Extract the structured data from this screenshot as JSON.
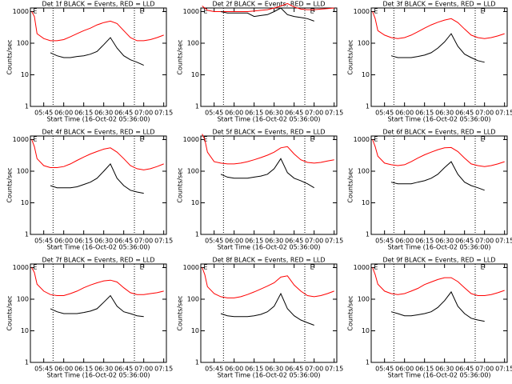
{
  "chart_data": [
    {
      "type": "line",
      "title": "Det 1f BLACK = Events, RED = LLD",
      "xlabel": "Start Time (16-Oct-02 05:36:00)",
      "ylabel": "Counts/sec",
      "log_y": true,
      "x": [
        "05:36",
        "05:38",
        "05:40",
        "05:45",
        "05:50",
        "05:55",
        "06:00",
        "06:05",
        "06:10",
        "06:15",
        "06:20",
        "06:25",
        "06:30",
        "06:35",
        "06:40",
        "06:45",
        "06:50",
        "06:55",
        "07:00",
        "07:05",
        "07:10",
        "07:15"
      ],
      "xlim": [
        "05:35",
        "07:17"
      ],
      "xticks": [
        "05:45",
        "06:00",
        "06:15",
        "06:30",
        "06:45",
        "07:00",
        "07:15"
      ],
      "ylim": [
        1,
        1300
      ],
      "yticks": [
        1,
        10,
        100,
        1000
      ],
      "vlines": [
        "05:52",
        "06:53"
      ],
      "annotations": [
        {
          "x": "05:37",
          "text": "E"
        },
        {
          "x": "06:57",
          "text": "E"
        }
      ],
      "series": [
        {
          "color": "#ff0000",
          "values": [
            1000,
            700,
            200,
            140,
            120,
            120,
            130,
            160,
            200,
            250,
            300,
            380,
            450,
            500,
            420,
            250,
            150,
            120,
            120,
            130,
            150,
            180
          ]
        },
        {
          "color": "#000000",
          "values": [
            null,
            null,
            null,
            null,
            50,
            40,
            35,
            35,
            38,
            40,
            45,
            55,
            90,
            150,
            70,
            40,
            30,
            25,
            20,
            null,
            null,
            null
          ]
        }
      ]
    },
    {
      "type": "line",
      "title": "Det 2f BLACK = Events, RED = LLD",
      "xlabel": "Start Time (16-Oct-02 05:36:00)",
      "ylabel": "Counts/sec",
      "log_y": true,
      "x": [
        "05:36",
        "05:38",
        "05:40",
        "05:45",
        "05:50",
        "05:55",
        "06:00",
        "06:05",
        "06:10",
        "06:15",
        "06:20",
        "06:25",
        "06:30",
        "06:35",
        "06:40",
        "06:45",
        "06:50",
        "06:55",
        "07:00",
        "07:05",
        "07:10",
        "07:15"
      ],
      "xlim": [
        "05:35",
        "07:17"
      ],
      "xticks": [
        "05:45",
        "06:00",
        "06:15",
        "06:30",
        "06:45",
        "07:00",
        "07:15"
      ],
      "ylim": [
        1,
        1300
      ],
      "yticks": [
        1,
        10,
        100,
        1000
      ],
      "vlines": [
        "05:52",
        "06:53"
      ],
      "annotations": [
        {
          "x": "05:37",
          "text": "E"
        },
        {
          "x": "06:57",
          "text": "E"
        }
      ],
      "series": [
        {
          "color": "#ff0000",
          "values": [
            1500,
            1300,
            1100,
            1000,
            1000,
            1000,
            1000,
            1000,
            1000,
            1050,
            1100,
            1150,
            1300,
            1500,
            1800,
            1400,
            1200,
            1150,
            1150,
            1200,
            1250,
            1300
          ]
        },
        {
          "color": "#000000",
          "values": [
            null,
            null,
            null,
            null,
            1000,
            900,
            900,
            900,
            900,
            700,
            750,
            800,
            1000,
            1300,
            800,
            700,
            650,
            600,
            500,
            null,
            null,
            null
          ]
        }
      ]
    },
    {
      "type": "line",
      "title": "Det 3f BLACK = Events, RED = LLD",
      "xlabel": "Start Time (16-Oct-02 05:36:00)",
      "ylabel": "Counts/sec",
      "log_y": true,
      "x": [
        "05:36",
        "05:38",
        "05:40",
        "05:45",
        "05:50",
        "05:55",
        "06:00",
        "06:05",
        "06:10",
        "06:15",
        "06:20",
        "06:25",
        "06:30",
        "06:35",
        "06:40",
        "06:45",
        "06:50",
        "06:55",
        "07:00",
        "07:05",
        "07:10",
        "07:15"
      ],
      "xlim": [
        "05:35",
        "07:17"
      ],
      "xticks": [
        "05:45",
        "06:00",
        "06:15",
        "06:30",
        "06:45",
        "07:00",
        "07:15"
      ],
      "ylim": [
        1,
        1300
      ],
      "yticks": [
        1,
        10,
        100,
        1000
      ],
      "vlines": [
        "05:52",
        "06:53"
      ],
      "annotations": [
        {
          "x": "05:37",
          "text": "E"
        },
        {
          "x": "06:57",
          "text": "E"
        }
      ],
      "series": [
        {
          "color": "#ff0000",
          "values": [
            1000,
            600,
            250,
            180,
            150,
            140,
            150,
            180,
            230,
            300,
            380,
            460,
            540,
            600,
            450,
            280,
            180,
            150,
            140,
            150,
            170,
            200
          ]
        },
        {
          "color": "#000000",
          "values": [
            null,
            null,
            null,
            null,
            40,
            35,
            35,
            35,
            38,
            42,
            50,
            70,
            110,
            200,
            80,
            45,
            35,
            28,
            25,
            null,
            null,
            null
          ]
        }
      ]
    },
    {
      "type": "line",
      "title": "Det 4f BLACK = Events, RED = LLD",
      "xlabel": "Start Time (16-Oct-02 05:36:00)",
      "ylabel": "Counts/sec",
      "log_y": true,
      "x": [
        "05:36",
        "05:38",
        "05:40",
        "05:45",
        "05:50",
        "05:55",
        "06:00",
        "06:05",
        "06:10",
        "06:15",
        "06:20",
        "06:25",
        "06:30",
        "06:35",
        "06:40",
        "06:45",
        "06:50",
        "06:55",
        "07:00",
        "07:05",
        "07:10",
        "07:15"
      ],
      "xlim": [
        "05:35",
        "07:17"
      ],
      "xticks": [
        "05:45",
        "06:00",
        "06:15",
        "06:30",
        "06:45",
        "07:00",
        "07:15"
      ],
      "ylim": [
        1,
        1300
      ],
      "yticks": [
        1,
        10,
        100,
        1000
      ],
      "vlines": [
        "05:52",
        "06:53"
      ],
      "annotations": [
        {
          "x": "05:37",
          "text": "E"
        },
        {
          "x": "06:57",
          "text": "E"
        }
      ],
      "series": [
        {
          "color": "#ff0000",
          "values": [
            1000,
            600,
            250,
            150,
            130,
            130,
            140,
            170,
            220,
            280,
            350,
            420,
            500,
            550,
            400,
            250,
            150,
            120,
            110,
            120,
            140,
            170
          ]
        },
        {
          "color": "#000000",
          "values": [
            null,
            null,
            null,
            null,
            35,
            30,
            30,
            30,
            32,
            38,
            45,
            60,
            100,
            170,
            60,
            35,
            25,
            22,
            20,
            null,
            null,
            null
          ]
        }
      ]
    },
    {
      "type": "line",
      "title": "Det 5f BLACK = Events, RED = LLD",
      "xlabel": "Start Time (16-Oct-02 05:36:00)",
      "ylabel": "Counts/sec",
      "log_y": true,
      "x": [
        "05:36",
        "05:38",
        "05:40",
        "05:45",
        "05:50",
        "05:55",
        "06:00",
        "06:05",
        "06:10",
        "06:15",
        "06:20",
        "06:25",
        "06:30",
        "06:35",
        "06:40",
        "06:45",
        "06:50",
        "06:55",
        "07:00",
        "07:05",
        "07:10",
        "07:15"
      ],
      "xlim": [
        "05:35",
        "07:17"
      ],
      "xticks": [
        "05:45",
        "06:00",
        "06:15",
        "06:30",
        "06:45",
        "07:00",
        "07:15"
      ],
      "ylim": [
        1,
        1300
      ],
      "yticks": [
        1,
        10,
        100,
        1000
      ],
      "vlines": [
        "05:52",
        "06:53"
      ],
      "annotations": [
        {
          "x": "05:37",
          "text": "E"
        },
        {
          "x": "06:57",
          "text": "E"
        }
      ],
      "series": [
        {
          "color": "#ff0000",
          "values": [
            1500,
            1000,
            400,
            200,
            180,
            170,
            170,
            180,
            200,
            230,
            270,
            320,
            400,
            550,
            600,
            350,
            230,
            190,
            180,
            190,
            210,
            230
          ]
        },
        {
          "color": "#000000",
          "values": [
            null,
            null,
            null,
            null,
            80,
            65,
            60,
            60,
            60,
            65,
            70,
            80,
            120,
            250,
            90,
            60,
            50,
            40,
            30,
            null,
            null,
            null
          ]
        }
      ]
    },
    {
      "type": "line",
      "title": "Det 6f BLACK = Events, RED = LLD",
      "xlabel": "Start Time (16-Oct-02 05:36:00)",
      "ylabel": "Counts/sec",
      "log_y": true,
      "x": [
        "05:36",
        "05:38",
        "05:40",
        "05:45",
        "05:50",
        "05:55",
        "06:00",
        "06:05",
        "06:10",
        "06:15",
        "06:20",
        "06:25",
        "06:30",
        "06:35",
        "06:40",
        "06:45",
        "06:50",
        "06:55",
        "07:00",
        "07:05",
        "07:10",
        "07:15"
      ],
      "xlim": [
        "05:35",
        "07:17"
      ],
      "xticks": [
        "05:45",
        "06:00",
        "06:15",
        "06:30",
        "06:45",
        "07:00",
        "07:15"
      ],
      "ylim": [
        1,
        1300
      ],
      "yticks": [
        1,
        10,
        100,
        1000
      ],
      "vlines": [
        "05:52",
        "06:53"
      ],
      "annotations": [
        {
          "x": "05:37",
          "text": "E"
        },
        {
          "x": "06:57",
          "text": "E"
        }
      ],
      "series": [
        {
          "color": "#ff0000",
          "values": [
            1000,
            600,
            300,
            180,
            160,
            150,
            160,
            200,
            260,
            330,
            400,
            480,
            550,
            560,
            420,
            260,
            170,
            150,
            140,
            150,
            170,
            200
          ]
        },
        {
          "color": "#000000",
          "values": [
            null,
            null,
            null,
            null,
            45,
            40,
            40,
            40,
            45,
            50,
            60,
            80,
            130,
            200,
            80,
            45,
            35,
            30,
            25,
            null,
            null,
            null
          ]
        }
      ]
    },
    {
      "type": "line",
      "title": "Det 7f BLACK = Events, RED = LLD",
      "xlabel": "Start Time (16-Oct-02 05:36:00)",
      "ylabel": "Counts/sec",
      "log_y": true,
      "x": [
        "05:36",
        "05:38",
        "05:40",
        "05:45",
        "05:50",
        "05:55",
        "06:00",
        "06:05",
        "06:10",
        "06:15",
        "06:20",
        "06:25",
        "06:30",
        "06:35",
        "06:40",
        "06:45",
        "06:50",
        "06:55",
        "07:00",
        "07:05",
        "07:10",
        "07:15"
      ],
      "xlim": [
        "05:35",
        "07:17"
      ],
      "xticks": [
        "05:45",
        "06:00",
        "06:15",
        "06:30",
        "06:45",
        "07:00",
        "07:15"
      ],
      "ylim": [
        1,
        1300
      ],
      "yticks": [
        1,
        10,
        100,
        1000
      ],
      "vlines": [
        "05:52",
        "06:53"
      ],
      "annotations": [
        {
          "x": "05:37",
          "text": "E"
        },
        {
          "x": "06:57",
          "text": "E"
        }
      ],
      "series": [
        {
          "color": "#ff0000",
          "values": [
            1000,
            700,
            300,
            180,
            140,
            130,
            130,
            150,
            180,
            230,
            280,
            330,
            380,
            400,
            350,
            230,
            160,
            140,
            140,
            150,
            160,
            180
          ]
        },
        {
          "color": "#000000",
          "values": [
            null,
            null,
            null,
            null,
            50,
            40,
            35,
            35,
            35,
            38,
            42,
            50,
            80,
            130,
            60,
            40,
            35,
            30,
            28,
            null,
            null,
            null
          ]
        }
      ]
    },
    {
      "type": "line",
      "title": "Det 8f BLACK = Events, RED = LLD",
      "xlabel": "Start Time (16-Oct-02 05:36:00)",
      "ylabel": "Counts/sec",
      "log_y": true,
      "x": [
        "05:36",
        "05:38",
        "05:40",
        "05:45",
        "05:50",
        "05:55",
        "06:00",
        "06:05",
        "06:10",
        "06:15",
        "06:20",
        "06:25",
        "06:30",
        "06:35",
        "06:40",
        "06:45",
        "06:50",
        "06:55",
        "07:00",
        "07:05",
        "07:10",
        "07:15"
      ],
      "xlim": [
        "05:35",
        "07:17"
      ],
      "xticks": [
        "05:45",
        "06:00",
        "06:15",
        "06:30",
        "06:45",
        "07:00",
        "07:15"
      ],
      "ylim": [
        1,
        1300
      ],
      "yticks": [
        1,
        10,
        100,
        1000
      ],
      "vlines": [
        "05:52",
        "06:53"
      ],
      "annotations": [
        {
          "x": "05:37",
          "text": "E"
        },
        {
          "x": "06:57",
          "text": "E"
        }
      ],
      "series": [
        {
          "color": "#ff0000",
          "values": [
            1000,
            600,
            250,
            150,
            120,
            110,
            110,
            120,
            140,
            170,
            210,
            260,
            330,
            500,
            550,
            280,
            180,
            130,
            120,
            130,
            150,
            180
          ]
        },
        {
          "color": "#000000",
          "values": [
            null,
            null,
            null,
            null,
            35,
            30,
            28,
            28,
            28,
            30,
            33,
            40,
            60,
            150,
            50,
            30,
            22,
            18,
            15,
            null,
            null,
            null
          ]
        }
      ]
    },
    {
      "type": "line",
      "title": "Det 9f BLACK = Events, RED = LLD",
      "xlabel": "Start Time (16-Oct-02 05:36:00)",
      "ylabel": "Counts/sec",
      "log_y": true,
      "x": [
        "05:36",
        "05:38",
        "05:40",
        "05:45",
        "05:50",
        "05:55",
        "06:00",
        "06:05",
        "06:10",
        "06:15",
        "06:20",
        "06:25",
        "06:30",
        "06:35",
        "06:40",
        "06:45",
        "06:50",
        "06:55",
        "07:00",
        "07:05",
        "07:10",
        "07:15"
      ],
      "xlim": [
        "05:35",
        "07:17"
      ],
      "xticks": [
        "05:45",
        "06:00",
        "06:15",
        "06:30",
        "06:45",
        "07:00",
        "07:15"
      ],
      "ylim": [
        1,
        1300
      ],
      "yticks": [
        1,
        10,
        100,
        1000
      ],
      "vlines": [
        "05:52",
        "06:53"
      ],
      "annotations": [
        {
          "x": "05:37",
          "text": "E"
        },
        {
          "x": "06:57",
          "text": "E"
        }
      ],
      "series": [
        {
          "color": "#ff0000",
          "values": [
            1000,
            600,
            300,
            180,
            150,
            140,
            150,
            180,
            220,
            290,
            350,
            420,
            480,
            480,
            360,
            230,
            150,
            130,
            130,
            140,
            160,
            190
          ]
        },
        {
          "color": "#000000",
          "values": [
            null,
            null,
            null,
            null,
            40,
            35,
            30,
            30,
            32,
            35,
            40,
            55,
            90,
            170,
            60,
            35,
            25,
            22,
            20,
            null,
            null,
            null
          ]
        }
      ]
    }
  ]
}
